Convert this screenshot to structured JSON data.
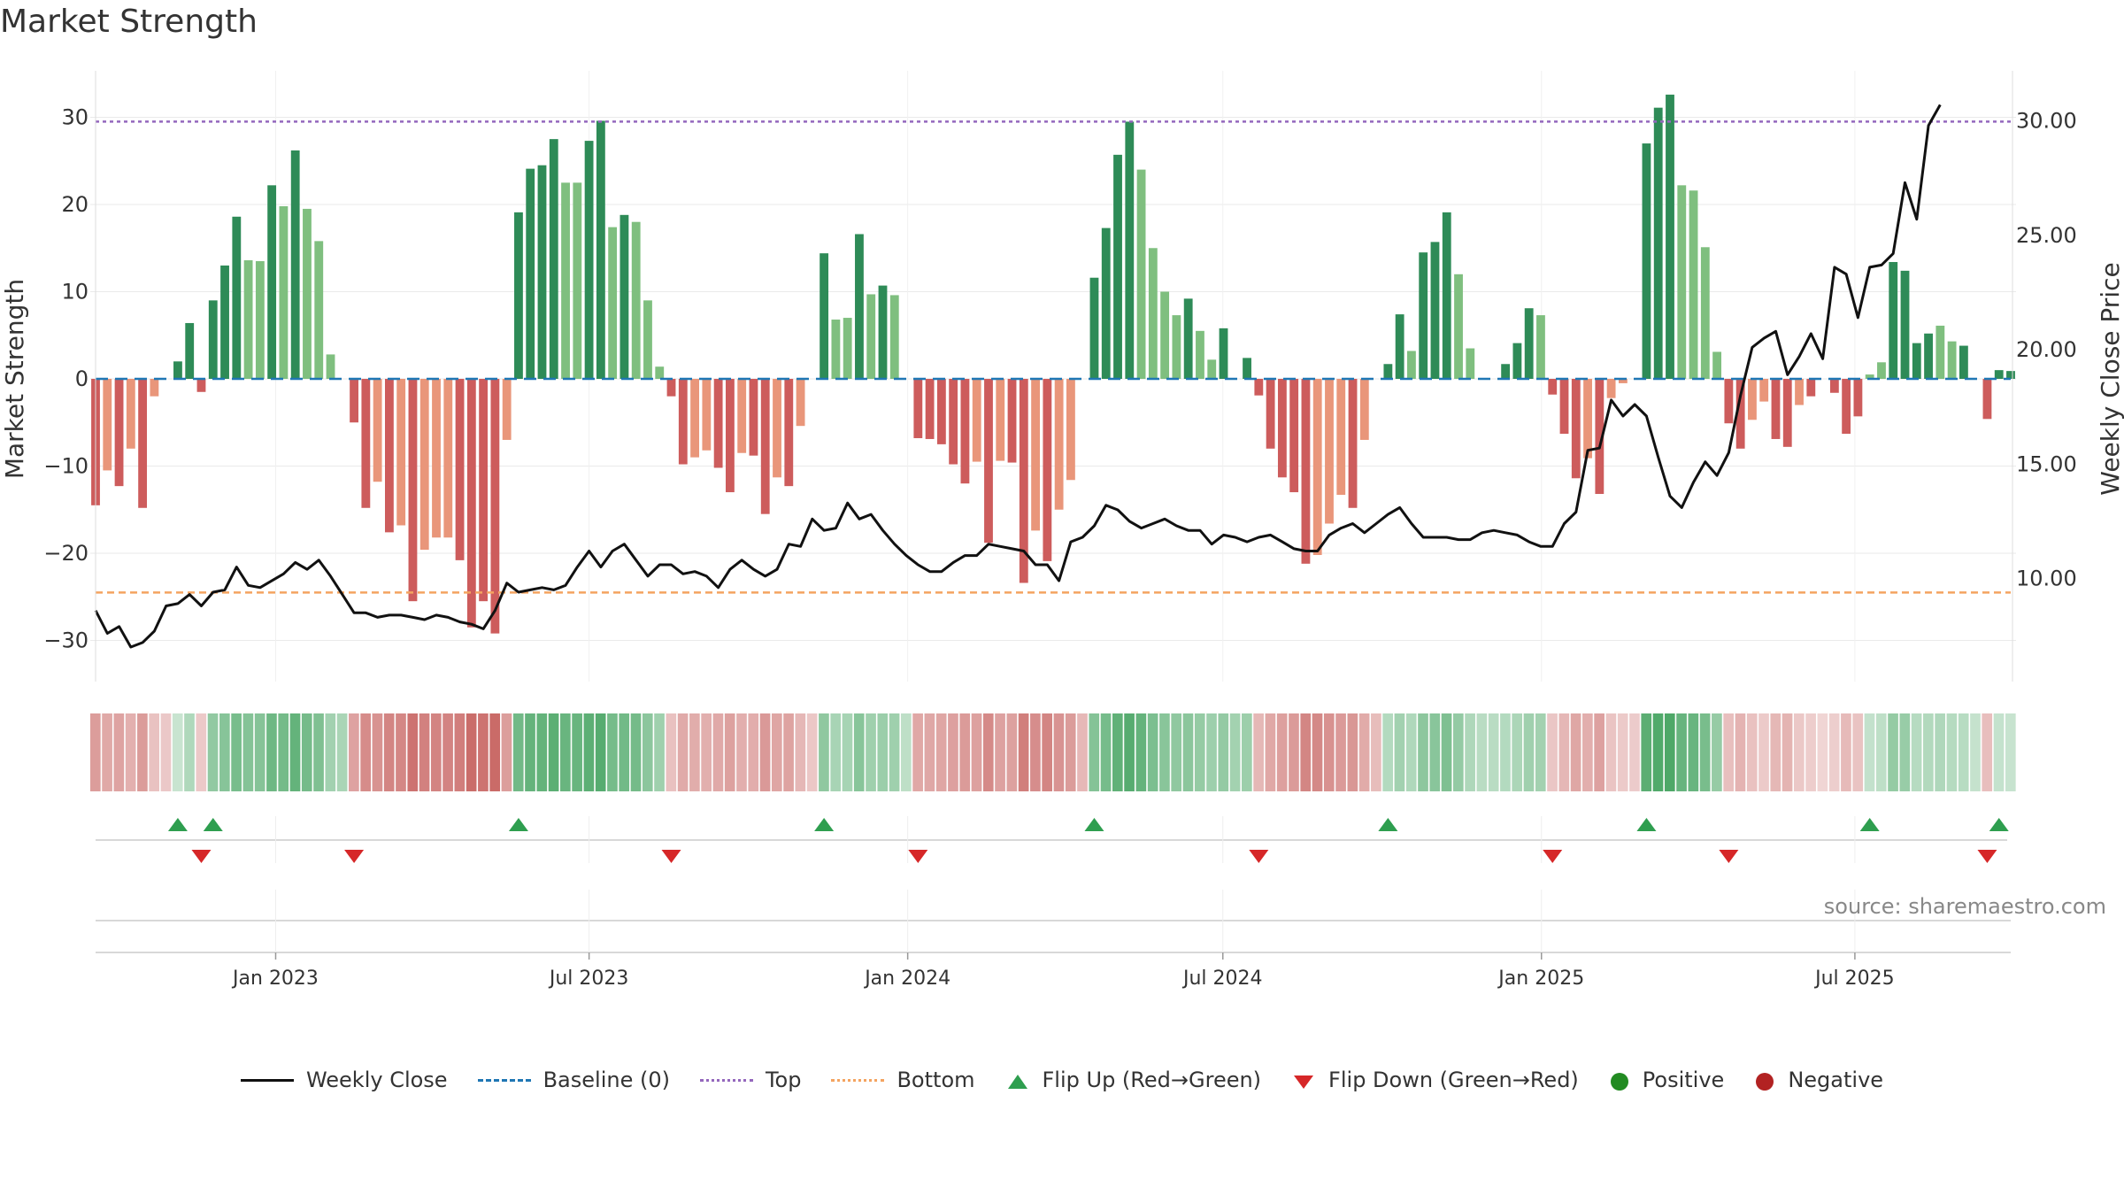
{
  "title": "Market Strength",
  "source": "source: sharemaestro.com",
  "colors": {
    "strong_up": "#2e8b57",
    "weak_up": "#7fbf7f",
    "strong_down": "#cd5c5c",
    "weak_down": "#e9967a",
    "line": "#111111",
    "baseline": "#1f77b4",
    "top": "#9467bd",
    "bottom": "#f4a460",
    "flip_up": "#2e9e4f",
    "flip_down": "#d62728",
    "positive": "#228b22",
    "negative": "#b22222"
  },
  "legend": [
    {
      "key": "close",
      "label": "Weekly Close",
      "icon": "solid-line"
    },
    {
      "key": "baseline",
      "label": "Baseline (0)",
      "icon": "dashed-line"
    },
    {
      "key": "top",
      "label": "Top",
      "icon": "dotted-line"
    },
    {
      "key": "bottom",
      "label": "Bottom",
      "icon": "dotted-line"
    },
    {
      "key": "flip_up",
      "label": "Flip Up (Red→Green)",
      "icon": "triangle-up-icon"
    },
    {
      "key": "flip_down",
      "label": "Flip Down (Green→Red)",
      "icon": "triangle-down-icon"
    },
    {
      "key": "positive",
      "label": "Positive",
      "icon": "circle-icon"
    },
    {
      "key": "negative",
      "label": "Negative",
      "icon": "circle-icon"
    }
  ],
  "chart_data": {
    "type": "bar",
    "title": "Market Strength",
    "ylabel": "Market Strength",
    "y2label": "Weekly Close Price",
    "ylim": [
      -35,
      36
    ],
    "y_ticks": [
      30,
      20,
      10,
      0,
      -10,
      -20,
      -30
    ],
    "y_tick_labels": [
      "30",
      "20",
      "10",
      "0",
      "−10",
      "−20",
      "−30"
    ],
    "y2lim": [
      5.0,
      32.0
    ],
    "y2_ticks": [
      30,
      25,
      20,
      15,
      10
    ],
    "y2_tick_labels": [
      "30.00",
      "25.00",
      "20.00",
      "15.00",
      "10.00"
    ],
    "top_level": 29.5,
    "bottom_level": -24.5,
    "baseline": 0,
    "x_start": "2022-09-19",
    "x_end": "2025-09-29",
    "x_ticks": [
      "2023-01-01",
      "2023-07-01",
      "2024-01-01",
      "2024-07-01",
      "2025-01-01",
      "2025-07-01"
    ],
    "x_tick_labels": [
      "Jan 2023",
      "Jul 2023",
      "Jan 2024",
      "Jul 2024",
      "Jan 2025",
      "Jul 2025"
    ],
    "strength": [
      -14.5,
      -10.5,
      -12.3,
      -8,
      -14.8,
      -2,
      0,
      2,
      6.4,
      -1.5,
      9,
      13,
      18.6,
      13.6,
      13.5,
      22.2,
      19.8,
      26.2,
      19.5,
      15.8,
      2.8,
      0,
      -5,
      -14.8,
      -11.8,
      -17.6,
      -16.8,
      -25.5,
      -19.6,
      -18.2,
      -18.2,
      -20.8,
      -28.5,
      -25.5,
      -29.2,
      -7,
      19.1,
      24.1,
      24.5,
      27.5,
      22.5,
      22.5,
      27.3,
      29.6,
      17.4,
      18.8,
      18,
      9,
      1.4,
      -2,
      -9.8,
      -9,
      -8.2,
      -10.2,
      -13,
      -8.5,
      -8.8,
      -15.5,
      -11.3,
      -12.3,
      -5.4,
      0,
      14.4,
      6.8,
      7,
      16.6,
      9.7,
      10.7,
      9.6,
      0,
      -6.8,
      -6.9,
      -7.5,
      -9.8,
      -12,
      -9.5,
      -18.8,
      -9.4,
      -9.6,
      -23.4,
      -17.4,
      -20.9,
      -15,
      -11.6,
      0,
      11.6,
      17.3,
      25.7,
      29.5,
      24,
      15,
      10,
      7.3,
      9.2,
      5.5,
      2.2,
      5.8,
      0,
      2.4,
      -1.9,
      -8,
      -11.3,
      -13,
      -21.2,
      -20.2,
      -16.6,
      -13.3,
      -14.8,
      -7,
      0,
      1.7,
      7.4,
      3.2,
      14.5,
      15.7,
      19.1,
      12,
      3.5,
      0,
      0,
      1.7,
      4.1,
      8.1,
      7.3,
      -1.8,
      -6.3,
      -11.4,
      -9.1,
      -13.2,
      -2.2,
      -0.5,
      0,
      27,
      31.1,
      32.6,
      22.2,
      21.6,
      15.1,
      3.1,
      -5.1,
      -8,
      -4.7,
      -2.6,
      -6.9,
      -7.8,
      -3,
      -2,
      0,
      -1.6,
      -6.3,
      -4.3,
      0.5,
      1.9,
      13.4,
      12.4,
      4.1,
      5.2,
      6.1,
      4.3,
      3.8,
      0,
      -4.6,
      1,
      0.9
    ],
    "strength_weak": [
      0,
      1,
      0,
      1,
      0,
      1,
      0,
      0,
      0,
      0,
      0,
      0,
      0,
      1,
      1,
      0,
      1,
      0,
      1,
      1,
      1,
      0,
      0,
      0,
      1,
      0,
      1,
      0,
      1,
      1,
      1,
      0,
      0,
      0,
      0,
      1,
      0,
      0,
      0,
      0,
      1,
      1,
      0,
      0,
      1,
      0,
      1,
      1,
      1,
      0,
      0,
      1,
      1,
      0,
      0,
      1,
      0,
      0,
      1,
      0,
      1,
      0,
      0,
      1,
      1,
      0,
      1,
      0,
      1,
      0,
      0,
      0,
      0,
      0,
      0,
      1,
      0,
      1,
      0,
      0,
      1,
      0,
      1,
      1,
      0,
      0,
      0,
      0,
      0,
      1,
      1,
      1,
      1,
      0,
      1,
      1,
      0,
      0,
      0,
      0,
      0,
      0,
      0,
      0,
      1,
      1,
      1,
      0,
      1,
      0,
      0,
      0,
      1,
      0,
      0,
      0,
      1,
      1,
      0,
      0,
      0,
      0,
      0,
      1,
      0,
      0,
      0,
      1,
      0,
      1,
      1,
      0,
      0,
      0,
      0,
      1,
      1,
      1,
      1,
      0,
      0,
      1,
      1,
      0,
      0,
      1,
      0,
      1,
      0,
      0,
      0,
      1,
      1,
      0,
      0,
      0,
      0,
      1,
      1,
      0,
      0,
      0,
      0,
      0
    ],
    "weekly_close": [
      8.6,
      7.6,
      7.9,
      7,
      7.2,
      7.7,
      8.8,
      8.9,
      9.3,
      8.8,
      9.4,
      9.5,
      10.5,
      9.7,
      9.6,
      9.9,
      10.2,
      10.7,
      10.4,
      10.8,
      10.1,
      9.3,
      8.5,
      8.5,
      8.3,
      8.4,
      8.4,
      8.3,
      8.2,
      8.4,
      8.3,
      8.1,
      8,
      7.8,
      8.6,
      9.8,
      9.4,
      9.5,
      9.6,
      9.5,
      9.7,
      10.5,
      11.2,
      10.5,
      11.2,
      11.5,
      10.8,
      10.1,
      10.6,
      10.6,
      10.2,
      10.3,
      10.1,
      9.6,
      10.4,
      10.8,
      10.4,
      10.1,
      10.4,
      11.5,
      11.4,
      12.6,
      12.1,
      12.2,
      13.3,
      12.6,
      12.8,
      12.1,
      11.5,
      11,
      10.6,
      10.3,
      10.3,
      10.7,
      11,
      11,
      11.5,
      11.4,
      11.3,
      11.2,
      10.6,
      10.6,
      9.9,
      11.6,
      11.8,
      12.3,
      13.2,
      13,
      12.5,
      12.2,
      12.4,
      12.6,
      12.3,
      12.1,
      12.1,
      11.5,
      11.9,
      11.8,
      11.6,
      11.8,
      11.9,
      11.6,
      11.3,
      11.2,
      11.2,
      11.9,
      12.2,
      12.4,
      12,
      12.4,
      12.8,
      13.1,
      12.4,
      11.8,
      11.8,
      11.8,
      11.7,
      11.7,
      12,
      12.1,
      12,
      11.9,
      11.6,
      11.4,
      11.4,
      12.4,
      12.9,
      15.6,
      15.7,
      17.8,
      17.1,
      17.6,
      17.1,
      15.3,
      13.6,
      13.1,
      14.2,
      15.1,
      14.5,
      15.5,
      18,
      20.1,
      20.5,
      20.8,
      18.9,
      19.7,
      20.7,
      19.6,
      23.6,
      23.3,
      21.4,
      23.6,
      23.7,
      24.2,
      27.3,
      25.7,
      29.8,
      30.7
    ]
  }
}
